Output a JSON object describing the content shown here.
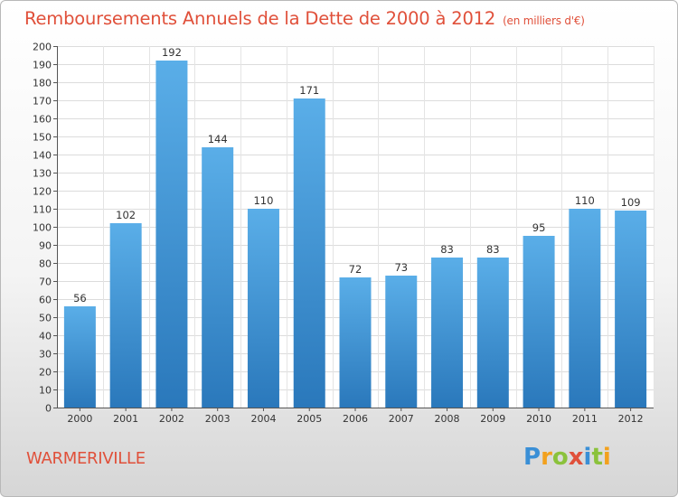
{
  "header": {
    "title": "Remboursements Annuels de la Dette de 2000 à 2012",
    "unit": "(en milliers d'€)"
  },
  "footer": {
    "commune": "WARMERIVILLE",
    "logo_letters": [
      "P",
      "r",
      "o",
      "x",
      "i",
      "t",
      "i"
    ],
    "logo_colors": [
      "#3a8fd6",
      "#f2a11e",
      "#8bc23c",
      "#e0503a",
      "#3a8fd6",
      "#8bc23c",
      "#f2a11e"
    ]
  },
  "chart_data": {
    "type": "bar",
    "title": "Remboursements Annuels de la Dette de 2000 à 2012",
    "subtitle": "(en milliers d'€)",
    "categories": [
      "2000",
      "2001",
      "2002",
      "2003",
      "2004",
      "2005",
      "2006",
      "2007",
      "2008",
      "2009",
      "2010",
      "2011",
      "2012"
    ],
    "values": [
      56,
      102,
      192,
      144,
      110,
      171,
      72,
      73,
      83,
      83,
      95,
      110,
      109
    ],
    "xlabel": "",
    "ylabel": "",
    "ylim": [
      0,
      200
    ],
    "yticks": [
      0,
      10,
      20,
      30,
      40,
      50,
      60,
      70,
      80,
      90,
      100,
      110,
      120,
      130,
      140,
      150,
      160,
      170,
      180,
      190,
      200
    ],
    "grid": true,
    "bar_color_top": "#5aaee8",
    "bar_color_bottom": "#2a78bb"
  }
}
